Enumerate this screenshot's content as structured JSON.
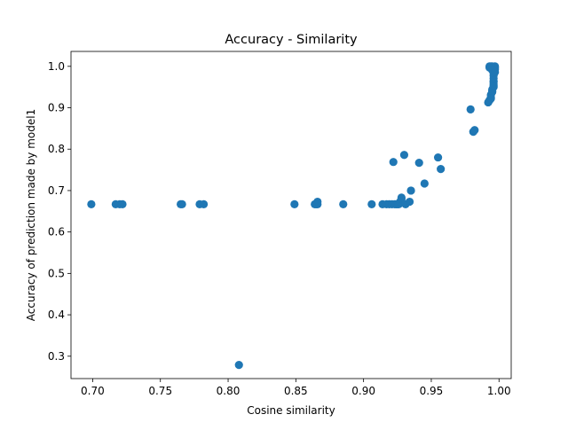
{
  "chart_data": {
    "type": "scatter",
    "title": "Accuracy - Similarity",
    "xlabel": "Cosine similarity",
    "ylabel": "Accuracy of prediction made by model1",
    "xlim": [
      0.684,
      1.009
    ],
    "ylim": [
      0.246,
      1.036
    ],
    "xticks": [
      0.7,
      0.75,
      0.8,
      0.85,
      0.9,
      0.95,
      1.0
    ],
    "xtick_labels": [
      "0.70",
      "0.75",
      "0.80",
      "0.85",
      "0.90",
      "0.95",
      "1.00"
    ],
    "yticks": [
      0.3,
      0.4,
      0.5,
      0.6,
      0.7,
      0.8,
      0.9,
      1.0
    ],
    "ytick_labels": [
      "0.3",
      "0.4",
      "0.5",
      "0.6",
      "0.7",
      "0.8",
      "0.9",
      "1.0"
    ],
    "grid": false,
    "marker_color": "#1f77b4",
    "series": [
      {
        "points": [
          [
            0.699,
            0.667
          ],
          [
            0.717,
            0.667
          ],
          [
            0.72,
            0.667
          ],
          [
            0.722,
            0.667
          ],
          [
            0.765,
            0.667
          ],
          [
            0.766,
            0.667
          ],
          [
            0.779,
            0.667
          ],
          [
            0.782,
            0.667
          ],
          [
            0.808,
            0.279
          ],
          [
            0.849,
            0.667
          ],
          [
            0.864,
            0.667
          ],
          [
            0.865,
            0.667
          ],
          [
            0.866,
            0.667
          ],
          [
            0.866,
            0.673
          ],
          [
            0.885,
            0.667
          ],
          [
            0.906,
            0.667
          ],
          [
            0.914,
            0.667
          ],
          [
            0.917,
            0.667
          ],
          [
            0.919,
            0.667
          ],
          [
            0.921,
            0.667
          ],
          [
            0.923,
            0.667
          ],
          [
            0.924,
            0.667
          ],
          [
            0.925,
            0.667
          ],
          [
            0.926,
            0.667
          ],
          [
            0.927,
            0.673
          ],
          [
            0.928,
            0.68
          ],
          [
            0.928,
            0.683
          ],
          [
            0.931,
            0.667
          ],
          [
            0.934,
            0.673
          ],
          [
            0.935,
            0.7
          ],
          [
            0.922,
            0.769
          ],
          [
            0.93,
            0.786
          ],
          [
            0.941,
            0.767
          ],
          [
            0.945,
            0.717
          ],
          [
            0.955,
            0.78
          ],
          [
            0.957,
            0.752
          ],
          [
            0.979,
            0.896
          ],
          [
            0.981,
            0.842
          ],
          [
            0.982,
            0.846
          ],
          [
            0.992,
            0.913
          ],
          [
            0.993,
            0.918
          ],
          [
            0.994,
            0.925
          ],
          [
            0.994,
            0.931
          ],
          [
            0.995,
            0.938
          ],
          [
            0.995,
            0.944
          ],
          [
            0.996,
            0.95
          ],
          [
            0.996,
            0.957
          ],
          [
            0.996,
            0.964
          ],
          [
            0.996,
            0.971
          ],
          [
            0.996,
            0.978
          ],
          [
            0.996,
            0.984
          ],
          [
            0.996,
            0.99
          ],
          [
            0.995,
            0.994
          ],
          [
            0.996,
            0.997
          ],
          [
            0.997,
            1.0
          ],
          [
            0.993,
            1.0
          ],
          [
            0.994,
            0.996
          ],
          [
            0.995,
            1.0
          ],
          [
            0.996,
            0.999
          ],
          [
            0.997,
            0.993
          ],
          [
            0.993,
            0.997
          ],
          [
            0.994,
            1.0
          ],
          [
            0.997,
            0.997
          ],
          [
            0.995,
            0.991
          ],
          [
            0.997,
            0.986
          ],
          [
            0.996,
            0.962
          ],
          [
            0.995,
            0.94
          ],
          [
            0.994,
            0.922
          ],
          [
            0.996,
            0.953
          ]
        ]
      }
    ]
  }
}
